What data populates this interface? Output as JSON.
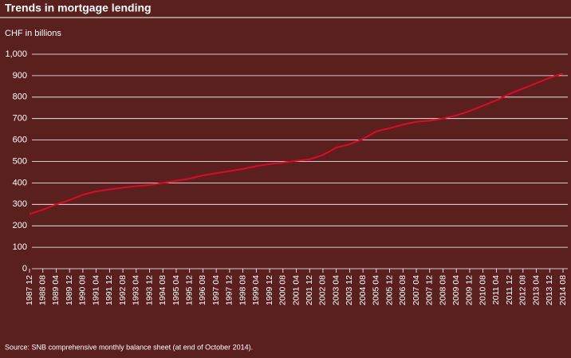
{
  "chart_data": {
    "type": "line",
    "title": "Trends in mortgage lending",
    "y_label": "CHF in billions",
    "source": "Source: SNB comprehensive monthly balance sheet (at end of October 2014).",
    "categories": [
      "1987 12",
      "1988 08",
      "1989 04",
      "1989 12",
      "1990 08",
      "1991 04",
      "1991 12",
      "1992 08",
      "1993 04",
      "1993 12",
      "1994 08",
      "1995 04",
      "1995 12",
      "1996 08",
      "1997 04",
      "1997 12",
      "1998 08",
      "1999 04",
      "1999 12",
      "2000 08",
      "2001 04",
      "2001 12",
      "2002 08",
      "2003 04",
      "2003 12",
      "2004 08",
      "2005 04",
      "2005 12",
      "2006 08",
      "2007 04",
      "2007 12",
      "2008 08",
      "2009 04",
      "2009 12",
      "2010 08",
      "2011 04",
      "2011 12",
      "2012 08",
      "2013 04",
      "2013 12",
      "2014 08"
    ],
    "series": [
      {
        "name": "Mortgage lending",
        "color": "#e3062c",
        "values": [
          255,
          275,
          300,
          320,
          345,
          360,
          370,
          378,
          385,
          390,
          400,
          410,
          420,
          435,
          445,
          455,
          465,
          478,
          488,
          495,
          503,
          510,
          530,
          565,
          580,
          605,
          640,
          655,
          672,
          685,
          690,
          700,
          715,
          735,
          760,
          785,
          815,
          840,
          865,
          890,
          910
        ]
      }
    ],
    "ylim": [
      0,
      1000
    ],
    "yticks": [
      0,
      100,
      200,
      300,
      400,
      500,
      600,
      700,
      800,
      900,
      {
        "value": 1000,
        "label": "1,000"
      }
    ],
    "grid": true
  }
}
